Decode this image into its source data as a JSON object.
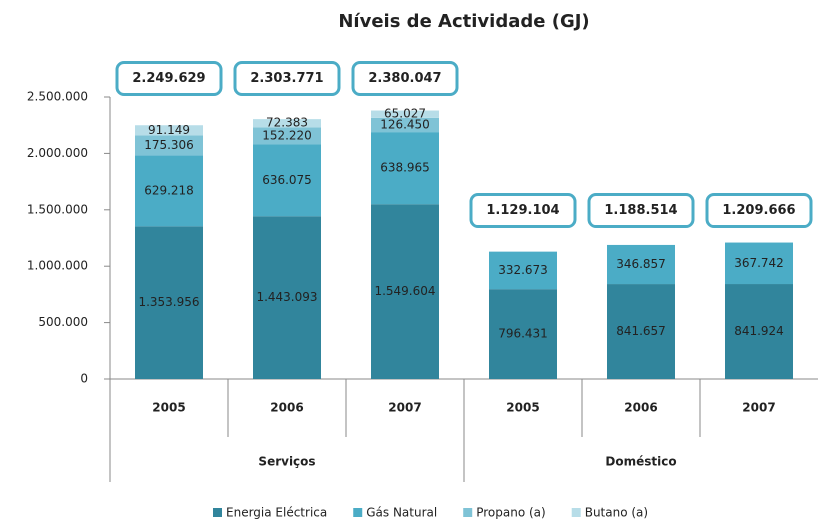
{
  "chart_data": {
    "type": "stacked_bar",
    "title": "Níveis de Actividade (GJ)",
    "categories": [
      "2005",
      "2006",
      "2007",
      "2005",
      "2006",
      "2007"
    ],
    "groups": [
      {
        "name": "Serviços",
        "span": 3
      },
      {
        "name": "Doméstico",
        "span": 3
      }
    ],
    "series": [
      {
        "name": "Energia Eléctrica",
        "color": "#31859c",
        "values": [
          1353956,
          1443093,
          1549604,
          796431,
          841657,
          841924
        ],
        "value_labels": [
          "1.353.956",
          "1.443.093",
          "1.549.604",
          "796.431",
          "841.657",
          "841.924"
        ]
      },
      {
        "name": "Gás Natural",
        "color": "#4bacc6",
        "values": [
          629218,
          636075,
          638965,
          332673,
          346857,
          367742
        ],
        "value_labels": [
          "629.218",
          "636.075",
          "638.965",
          "332.673",
          "346.857",
          "367.742"
        ]
      },
      {
        "name": "Propano (a)",
        "color": "#7fc3d6",
        "values": [
          175306,
          152220,
          126450,
          null,
          null,
          null
        ],
        "value_labels": [
          "175.306",
          "152.220",
          "126.450",
          null,
          null,
          null
        ]
      },
      {
        "name": "Butano (a)",
        "color": "#b7dde8",
        "values": [
          91149,
          72383,
          65027,
          null,
          null,
          null
        ],
        "value_labels": [
          "91.149",
          "72.383",
          "65.027",
          null,
          null,
          null
        ]
      }
    ],
    "totals": [
      2249629,
      2303771,
      2380047,
      1129104,
      1188514,
      1209666
    ],
    "total_labels": [
      "2.249.629",
      "2.303.771",
      "2.380.047",
      "1.129.104",
      "1.188.514",
      "1.209.666"
    ],
    "ylim": [
      0,
      2500000
    ],
    "yticks": [
      0,
      {
        "value": 500000,
        "label": "500.000"
      },
      {
        "value": 1000000,
        "label": "1.000.000"
      },
      {
        "value": 1500000,
        "label": "1.500.000"
      },
      {
        "value": 2000000,
        "label": "2.000.000"
      },
      {
        "value": 2500000,
        "label": "2.500.000"
      }
    ],
    "grid": false
  }
}
